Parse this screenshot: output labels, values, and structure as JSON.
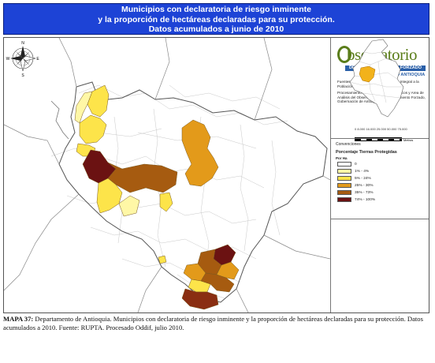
{
  "header": {
    "line1": "Municipios con declaratoria de riesgo inminente",
    "line2": "y la proporción de hectáreas declaradas para su protección.",
    "line3": "Datos acumulados a junio de 2010"
  },
  "compass": {
    "n": "N",
    "s": "S",
    "e": "E",
    "w": "W"
  },
  "logo": {
    "title": "bservatorio",
    "band": "DEL DESPLAZAMIENTO FORZADO",
    "sub": "CDAIPD ANTIOQUIA"
  },
  "credits": {
    "fuentes": "Fuentes: Comites Locales de Atención Integral a la Población Desplazada (CLAIPD)",
    "procesamiento": "Procesamiento: Area de Procesos Técnicos y Area de Análisis del Observatorio del Desplazamiento Forzado, Gobernación de Antioquia"
  },
  "scale": {
    "ticks": "0 8.000 16.000 25.000 50.000 75.000",
    "unit": "Metros"
  },
  "legend": {
    "title": "Convenciones",
    "subtitle": "Porcentaje Tierras Protegidas",
    "unit": "Por Ha",
    "items": [
      {
        "label": "0",
        "color": "#ffffff"
      },
      {
        "label": "1% - 4%",
        "color": "#fff7a6"
      },
      {
        "label": "5% - 24%",
        "color": "#fde44a"
      },
      {
        "label": "25% - 30%",
        "color": "#e39a1a"
      },
      {
        "label": "35% - 73%",
        "color": "#a65b10"
      },
      {
        "label": "74% - 100%",
        "color": "#6b1212"
      }
    ]
  },
  "caption": {
    "bold": "MAPA 37:",
    "text": " Departamento de Antioquia. Municipios con declaratoria de riesgo inminente y la proporción de hectáreas declaradas para su protección. Datos acumulados a 2010. Fuente: RUPTA. Procesado Oddif, julio 2010."
  }
}
